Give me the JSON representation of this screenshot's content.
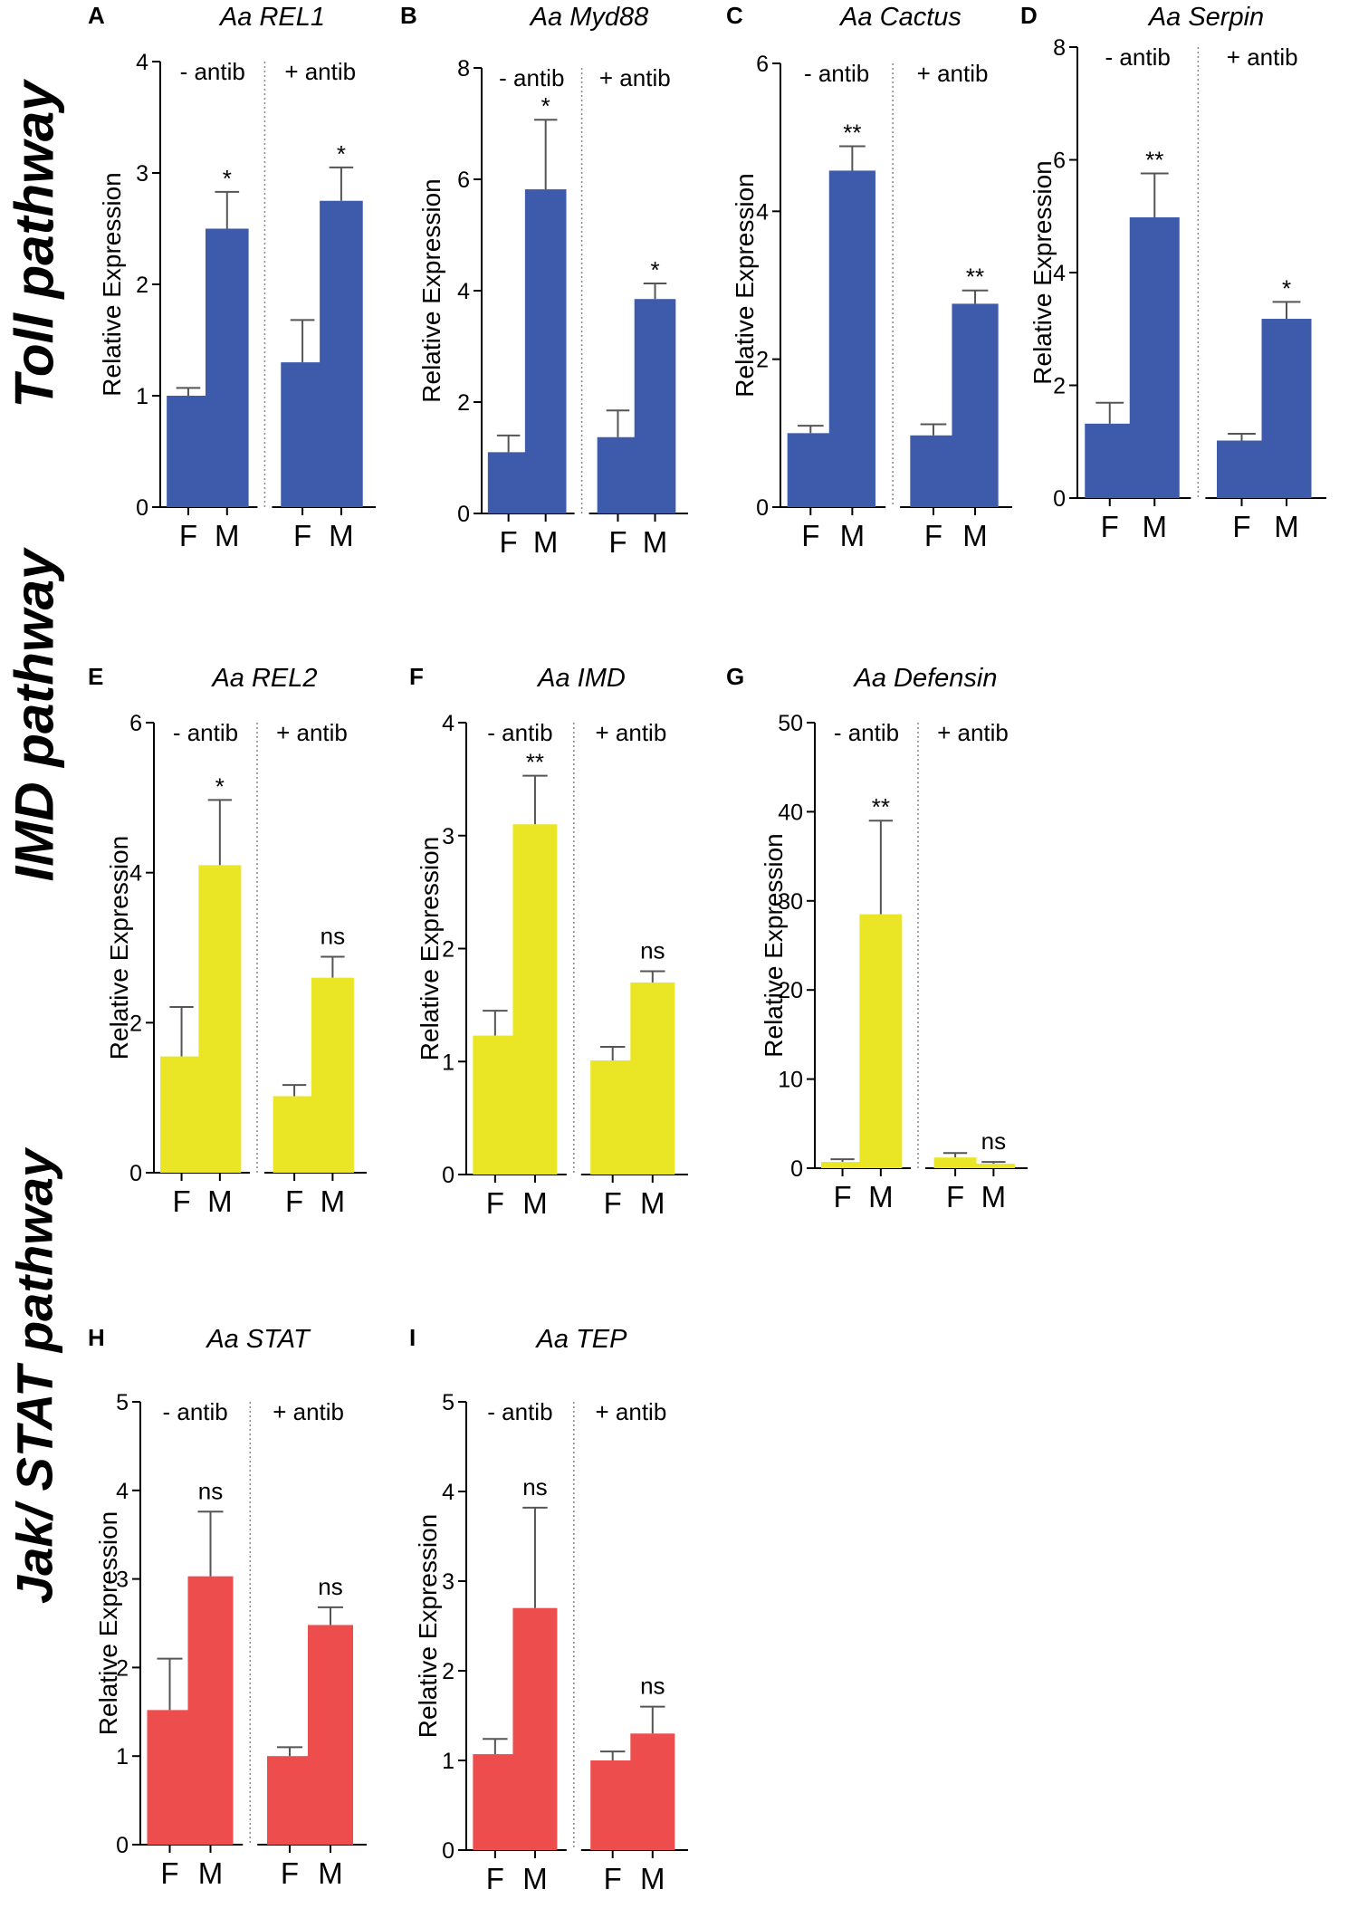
{
  "row_labels": {
    "toll": "Toll pathway",
    "imd": "IMD pathway",
    "jak": "Jak/ STAT pathway"
  },
  "chart_data": [
    {
      "type": "bar",
      "letter": "A",
      "title": "Aa REL1",
      "pathway": "Toll pathway",
      "ylabel": "Relative Expression",
      "ylim": [
        0,
        4
      ],
      "yticks": [
        0,
        1,
        2,
        3,
        4
      ],
      "color": "#3d5aab",
      "groups": [
        "- antib",
        "+ antib"
      ],
      "categories": [
        "F",
        "M",
        "F",
        "M"
      ],
      "values": [
        1.0,
        2.5,
        1.3,
        2.75
      ],
      "errors": [
        0.07,
        0.33,
        0.38,
        0.3
      ],
      "significance": [
        "",
        "*",
        "",
        "*"
      ]
    },
    {
      "type": "bar",
      "letter": "B",
      "title": "Aa Myd88",
      "pathway": "Toll pathway",
      "ylabel": "Relative Expression",
      "ylim": [
        0,
        8
      ],
      "yticks": [
        0,
        2,
        4,
        6,
        8
      ],
      "color": "#3d5aab",
      "groups": [
        "- antib",
        "+ antib"
      ],
      "categories": [
        "F",
        "M",
        "F",
        "M"
      ],
      "values": [
        1.1,
        5.82,
        1.37,
        3.85
      ],
      "errors": [
        0.3,
        1.25,
        0.48,
        0.28
      ],
      "significance": [
        "",
        "*",
        "",
        "*"
      ]
    },
    {
      "type": "bar",
      "letter": "C",
      "title": "Aa Cactus",
      "pathway": "Toll pathway",
      "ylabel": "Relative Expression",
      "ylim": [
        0,
        6
      ],
      "yticks": [
        0,
        2,
        4,
        6
      ],
      "color": "#3d5aab",
      "groups": [
        "- antib",
        "+ antib"
      ],
      "categories": [
        "F",
        "M",
        "F",
        "M"
      ],
      "values": [
        1.0,
        4.55,
        0.97,
        2.75
      ],
      "errors": [
        0.1,
        0.33,
        0.15,
        0.18
      ],
      "significance": [
        "",
        "**",
        "",
        "**"
      ]
    },
    {
      "type": "bar",
      "letter": "D",
      "title": "Aa Serpin",
      "pathway": "Toll pathway",
      "ylabel": "Relative Expression",
      "ylim": [
        0,
        8
      ],
      "yticks": [
        0,
        2,
        4,
        6,
        8
      ],
      "color": "#3d5aab",
      "groups": [
        "- antib",
        "+ antib"
      ],
      "categories": [
        "F",
        "M",
        "F",
        "M"
      ],
      "values": [
        1.32,
        4.98,
        1.02,
        3.18
      ],
      "errors": [
        0.37,
        0.78,
        0.12,
        0.3
      ],
      "significance": [
        "",
        "**",
        "",
        "*"
      ]
    },
    {
      "type": "bar",
      "letter": "E",
      "title": "Aa REL2",
      "pathway": "IMD pathway",
      "ylabel": "Relative Expression",
      "ylim": [
        0,
        6
      ],
      "yticks": [
        0,
        2,
        4,
        6
      ],
      "color": "#ebe625",
      "groups": [
        "- antib",
        "+ antib"
      ],
      "categories": [
        "F",
        "M",
        "F",
        "M"
      ],
      "values": [
        1.55,
        4.1,
        1.02,
        2.6
      ],
      "errors": [
        0.66,
        0.87,
        0.15,
        0.28
      ],
      "significance": [
        "",
        "*",
        "",
        "ns"
      ]
    },
    {
      "type": "bar",
      "letter": "F",
      "title": "Aa IMD",
      "pathway": "IMD pathway",
      "ylabel": "Relative Expression",
      "ylim": [
        0,
        4
      ],
      "yticks": [
        0,
        1,
        2,
        3,
        4
      ],
      "color": "#ebe625",
      "groups": [
        "- antib",
        "+ antib"
      ],
      "categories": [
        "F",
        "M",
        "F",
        "M"
      ],
      "values": [
        1.23,
        3.1,
        1.01,
        1.7
      ],
      "errors": [
        0.22,
        0.43,
        0.12,
        0.1
      ],
      "significance": [
        "",
        "**",
        "",
        "ns"
      ]
    },
    {
      "type": "bar",
      "letter": "G",
      "title": "Aa Defensin",
      "pathway": "IMD pathway",
      "ylabel": "Relative Expression",
      "ylim": [
        0,
        50
      ],
      "yticks": [
        0,
        10,
        20,
        30,
        40,
        50
      ],
      "color": "#ebe625",
      "groups": [
        "- antib",
        "+ antib"
      ],
      "categories": [
        "F",
        "M",
        "F",
        "M"
      ],
      "values": [
        0.7,
        28.5,
        1.2,
        0.5
      ],
      "errors": [
        0.3,
        10.5,
        0.5,
        0.2
      ],
      "significance": [
        "",
        "**",
        "",
        "ns"
      ]
    },
    {
      "type": "bar",
      "letter": "H",
      "title": "Aa STAT",
      "pathway": "Jak/ STAT pathway",
      "ylabel": "Relative Expression",
      "ylim": [
        0,
        5
      ],
      "yticks": [
        0,
        1,
        2,
        3,
        4,
        5
      ],
      "color": "#ee4d4d",
      "groups": [
        "- antib",
        "+ antib"
      ],
      "categories": [
        "F",
        "M",
        "F",
        "M"
      ],
      "values": [
        1.52,
        3.03,
        1.0,
        2.48
      ],
      "errors": [
        0.58,
        0.73,
        0.1,
        0.2
      ],
      "significance": [
        "",
        "ns",
        "",
        "ns"
      ]
    },
    {
      "type": "bar",
      "letter": "I",
      "title": "Aa TEP",
      "pathway": "Jak/ STAT pathway",
      "ylabel": "Relative Expression",
      "ylim": [
        0,
        5
      ],
      "yticks": [
        0,
        1,
        2,
        3,
        4,
        5
      ],
      "color": "#ee4d4d",
      "groups": [
        "- antib",
        "+ antib"
      ],
      "categories": [
        "F",
        "M",
        "F",
        "M"
      ],
      "values": [
        1.07,
        2.7,
        1.0,
        1.3
      ],
      "errors": [
        0.17,
        1.12,
        0.1,
        0.3
      ],
      "significance": [
        "",
        "ns",
        "",
        "ns"
      ]
    }
  ]
}
